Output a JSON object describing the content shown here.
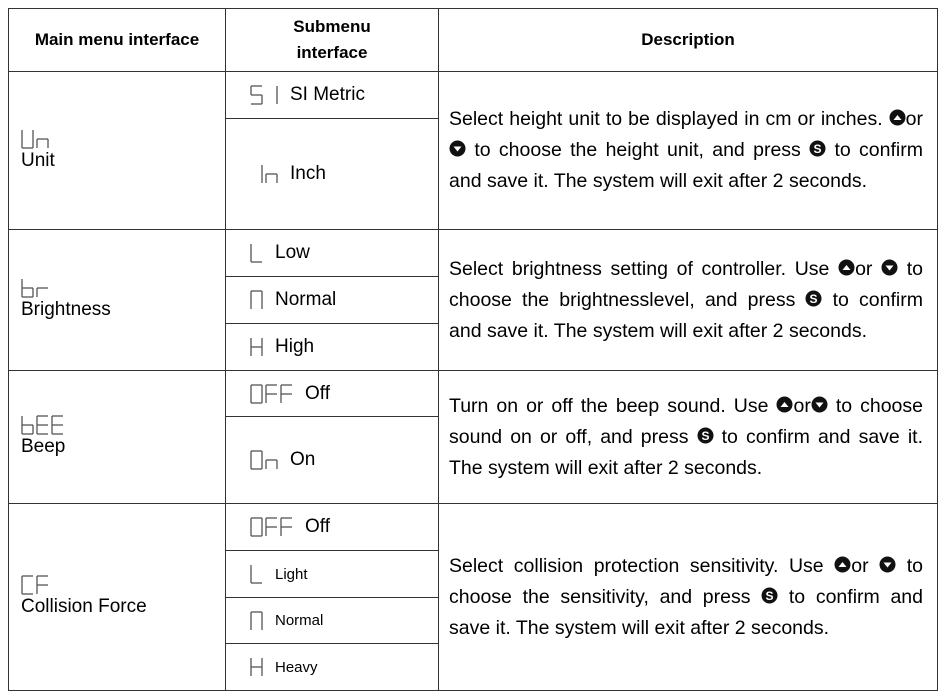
{
  "headers": [
    "Main menu interface",
    "Submenu interface",
    "Description"
  ],
  "rows": [
    {
      "code": "Un",
      "name": "Unit",
      "subs": [
        {
          "code": "SI",
          "label": "SI Metric"
        },
        {
          "code": "In",
          "label": "Inch"
        }
      ],
      "heights": [
        46,
        110
      ],
      "desc": [
        {
          "t": "Select height unit to be displayed in cm or inches. "
        },
        {
          "i": "up"
        },
        {
          "t": "or"
        },
        {
          "i": "down"
        },
        {
          "t": " to choose the height unit, and press "
        },
        {
          "i": "s"
        },
        {
          "t": " to confirm and save it. The system will exit after 2 seconds."
        }
      ]
    },
    {
      "code": "br",
      "name": "Brightness",
      "subs": [
        {
          "code": "L",
          "label": "Low"
        },
        {
          "code": "N",
          "label": "Normal"
        },
        {
          "code": "H",
          "label": "High"
        }
      ],
      "heights": [
        46,
        46,
        46
      ],
      "desc": [
        {
          "t": "Select brightness setting of controller. Use "
        },
        {
          "i": "up"
        },
        {
          "t": "or "
        },
        {
          "i": "down"
        },
        {
          "t": " to choose the brightnesslevel, and press "
        },
        {
          "i": "s"
        },
        {
          "t": " to confirm and save it. The system will exit after 2 seconds."
        }
      ]
    },
    {
      "code": "bEE",
      "name": "Beep",
      "subs": [
        {
          "code": "OFF",
          "label": "Off"
        },
        {
          "code": "On",
          "label": "On"
        }
      ],
      "heights": [
        45,
        86
      ],
      "desc": [
        {
          "t": "Turn on or off the beep sound. Use "
        },
        {
          "i": "up"
        },
        {
          "t": "or"
        },
        {
          "i": "down"
        },
        {
          "t": " to choose sound on or off, and press "
        },
        {
          "i": "s"
        },
        {
          "t": " to confirm and save it. The system will exit after 2 seconds."
        }
      ]
    },
    {
      "code": "CF",
      "name": "Collision Force",
      "subs": [
        {
          "code": "OFF",
          "label": "Off"
        },
        {
          "code": "L",
          "label": "Light",
          "small": true
        },
        {
          "code": "N",
          "label": "Normal",
          "small": true
        },
        {
          "code": "H",
          "label": "Heavy",
          "small": true
        }
      ],
      "heights": [
        46,
        46,
        45,
        46
      ],
      "desc": [
        {
          "t": "Select collision protection sensitivity. Use "
        },
        {
          "i": "up"
        },
        {
          "t": "or "
        },
        {
          "i": "down"
        },
        {
          "t": " to choose the sensitivity, and press "
        },
        {
          "i": "s"
        },
        {
          "t": " to confirm and save it. The system will exit after 2 seconds."
        }
      ]
    }
  ],
  "colors": {
    "segment": "#555555",
    "border": "#333333"
  }
}
